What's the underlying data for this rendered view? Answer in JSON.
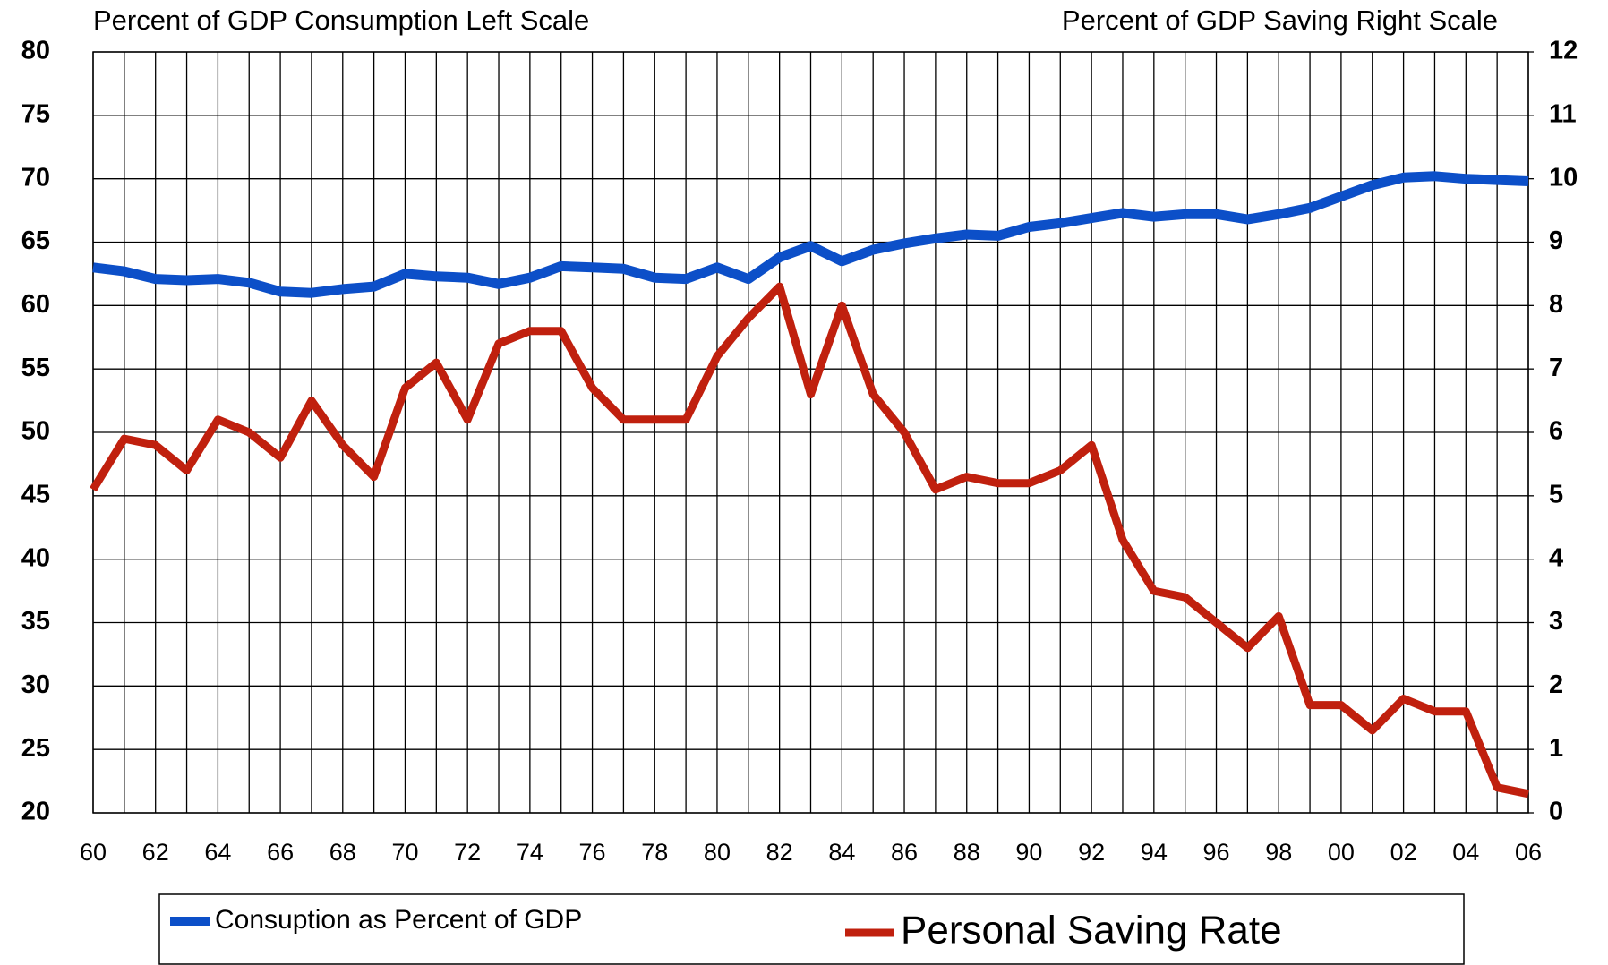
{
  "chart_data": {
    "type": "line",
    "annotations": [
      "Percent of GDP Consumption Left Scale",
      "Percent of GDP Saving Right Scale"
    ],
    "categories": [
      "60",
      null,
      "62",
      null,
      "64",
      null,
      "66",
      null,
      "68",
      null,
      "70",
      null,
      "72",
      null,
      "74",
      null,
      "76",
      null,
      "78",
      null,
      "80",
      null,
      "82",
      null,
      "84",
      null,
      "86",
      null,
      "88",
      null,
      "90",
      null,
      "92",
      null,
      "94",
      null,
      "96",
      null,
      "98",
      null,
      "00",
      null,
      "02",
      null,
      "04",
      null,
      "06"
    ],
    "series": [
      {
        "name": "Consuption as Percent of GDP",
        "color": "#0c4fc8",
        "axis": "y",
        "values": [
          63.0,
          62.7,
          62.1,
          62.0,
          62.1,
          61.8,
          61.1,
          61.0,
          61.3,
          61.5,
          62.5,
          62.3,
          62.2,
          61.7,
          62.2,
          63.1,
          63.0,
          62.9,
          62.2,
          62.1,
          63.0,
          62.1,
          63.8,
          64.7,
          63.5,
          64.4,
          64.9,
          65.3,
          65.6,
          65.5,
          66.2,
          66.5,
          66.9,
          67.3,
          67.0,
          67.2,
          67.2,
          66.8,
          67.2,
          67.7,
          68.6,
          69.5,
          70.1,
          70.2,
          70.0,
          69.9,
          69.8
        ]
      },
      {
        "name": "Personal Saving Rate",
        "color": "#c0200e",
        "axis": "y2",
        "values": [
          5.1,
          5.9,
          5.8,
          5.4,
          6.2,
          6.0,
          5.6,
          6.5,
          5.8,
          5.3,
          6.7,
          7.1,
          6.2,
          7.4,
          7.6,
          7.6,
          6.7,
          6.2,
          6.2,
          6.2,
          7.2,
          7.8,
          8.3,
          6.6,
          8.0,
          6.6,
          6.0,
          5.1,
          5.3,
          5.2,
          5.2,
          5.4,
          5.8,
          4.3,
          3.5,
          3.4,
          3.0,
          2.6,
          3.1,
          1.7,
          1.7,
          1.3,
          1.8,
          1.6,
          1.6,
          0.4,
          0.3
        ]
      }
    ],
    "ylim": [
      20,
      80
    ],
    "yticks": [
      20,
      25,
      30,
      35,
      40,
      45,
      50,
      55,
      60,
      65,
      70,
      75,
      80
    ],
    "y2lim": [
      0,
      12
    ],
    "y2ticks": [
      0,
      1,
      2,
      3,
      4,
      5,
      6,
      7,
      8,
      9,
      10,
      11,
      12
    ],
    "grid": true
  }
}
